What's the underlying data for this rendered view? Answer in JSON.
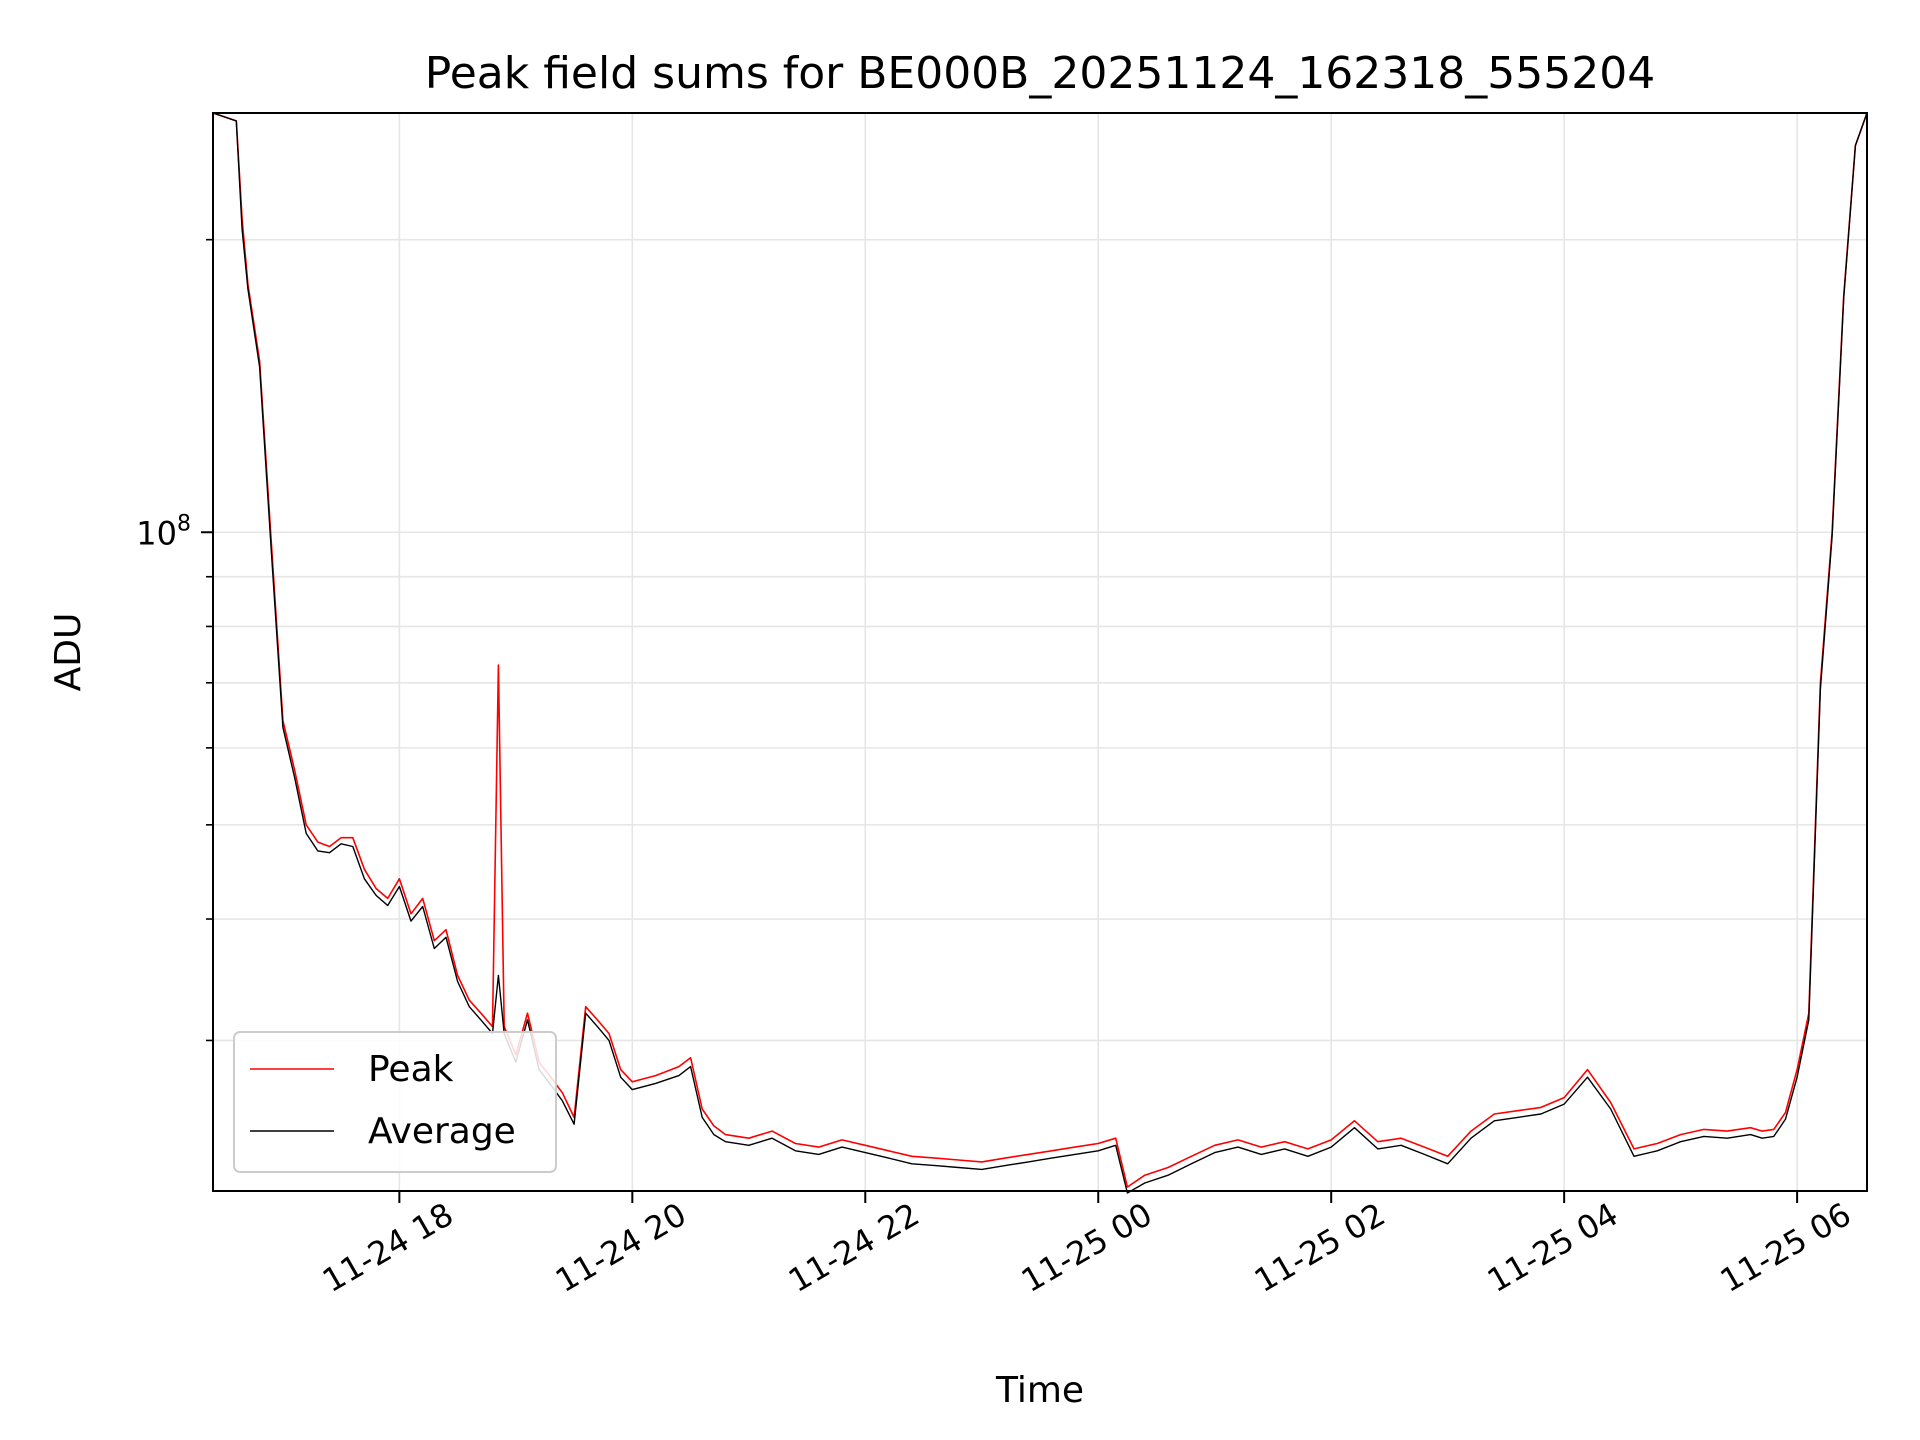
{
  "chart_data": {
    "type": "line",
    "title": "Peak field sums for BE000B_20251124_162318_555204",
    "xlabel": "Time",
    "ylabel": "ADU",
    "yscale": "log",
    "grid": true,
    "legend_location": "lower-left",
    "xlim_hours": [
      16.4,
      30.6
    ],
    "ylim": [
      21000000,
      270000000
    ],
    "x_ticks": [
      {
        "hours": 18,
        "label": "11-24 18"
      },
      {
        "hours": 20,
        "label": "11-24 20"
      },
      {
        "hours": 22,
        "label": "11-24 22"
      },
      {
        "hours": 24,
        "label": "11-25 00"
      },
      {
        "hours": 26,
        "label": "11-25 02"
      },
      {
        "hours": 28,
        "label": "11-25 04"
      },
      {
        "hours": 30,
        "label": "11-25 06"
      }
    ],
    "y_major_ticks": [
      {
        "value": 100000000,
        "base": "10",
        "exp": "8"
      }
    ],
    "y_minor_ticks": [
      30000000,
      40000000,
      50000000,
      60000000,
      70000000,
      80000000,
      90000000,
      200000000
    ],
    "x_hours": [
      16.4,
      16.6,
      16.65,
      16.7,
      16.8,
      16.9,
      17.0,
      17.1,
      17.2,
      17.3,
      17.4,
      17.5,
      17.6,
      17.7,
      17.8,
      17.9,
      18.0,
      18.1,
      18.2,
      18.3,
      18.4,
      18.5,
      18.6,
      18.7,
      18.8,
      18.85,
      18.9,
      19.0,
      19.1,
      19.2,
      19.3,
      19.4,
      19.5,
      19.6,
      19.7,
      19.8,
      19.9,
      20.0,
      20.2,
      20.4,
      20.5,
      20.6,
      20.7,
      20.8,
      21.0,
      21.2,
      21.4,
      21.6,
      21.8,
      22.0,
      22.2,
      22.4,
      22.6,
      22.8,
      23.0,
      23.2,
      23.4,
      23.6,
      23.8,
      24.0,
      24.15,
      24.25,
      24.4,
      24.6,
      24.8,
      25.0,
      25.2,
      25.4,
      25.6,
      25.8,
      26.0,
      26.2,
      26.4,
      26.6,
      26.8,
      27.0,
      27.2,
      27.4,
      27.6,
      27.8,
      28.0,
      28.2,
      28.4,
      28.6,
      28.8,
      29.0,
      29.2,
      29.4,
      29.6,
      29.7,
      29.8,
      29.9,
      30.0,
      30.1,
      30.2,
      30.3,
      30.4,
      30.5,
      30.6
    ],
    "series": [
      {
        "name": "Peak",
        "color": "#ff0000",
        "values": [
          270000000,
          265000000,
          210000000,
          180000000,
          150000000,
          98000000,
          64000000,
          57000000,
          50000000,
          48000000,
          47500000,
          48500000,
          48500000,
          45000000,
          43000000,
          42000000,
          44000000,
          40500000,
          42000000,
          38000000,
          39000000,
          35000000,
          33000000,
          32000000,
          31000000,
          73000000,
          31000000,
          29000000,
          32000000,
          28500000,
          27500000,
          26500000,
          25000000,
          32500000,
          31500000,
          30500000,
          28000000,
          27200000,
          27600000,
          28200000,
          28800000,
          25500000,
          24500000,
          24000000,
          23800000,
          24200000,
          23500000,
          23300000,
          23700000,
          23400000,
          23100000,
          22800000,
          22700000,
          22600000,
          22500000,
          22700000,
          22900000,
          23100000,
          23300000,
          23500000,
          23800000,
          21200000,
          21800000,
          22200000,
          22800000,
          23400000,
          23700000,
          23300000,
          23600000,
          23200000,
          23700000,
          24800000,
          23600000,
          23800000,
          23300000,
          22800000,
          24200000,
          25200000,
          25400000,
          25600000,
          26200000,
          28000000,
          25900000,
          23200000,
          23500000,
          24000000,
          24300000,
          24200000,
          24400000,
          24200000,
          24300000,
          25300000,
          28000000,
          32000000,
          70000000,
          100000000,
          175000000,
          250000000,
          270000000
        ]
      },
      {
        "name": "Average",
        "color": "#000000",
        "values": [
          270000000,
          265000000,
          205000000,
          178000000,
          148000000,
          96000000,
          63000000,
          56000000,
          49000000,
          47000000,
          46800000,
          47800000,
          47500000,
          44000000,
          42300000,
          41300000,
          43200000,
          39800000,
          41200000,
          37300000,
          38300000,
          34500000,
          32500000,
          31500000,
          30500000,
          35000000,
          30500000,
          28500000,
          31500000,
          28000000,
          27000000,
          26000000,
          24600000,
          32000000,
          31000000,
          30000000,
          27500000,
          26700000,
          27100000,
          27600000,
          28200000,
          25000000,
          24000000,
          23600000,
          23400000,
          23800000,
          23100000,
          22900000,
          23300000,
          23000000,
          22700000,
          22400000,
          22300000,
          22200000,
          22100000,
          22300000,
          22500000,
          22700000,
          22900000,
          23100000,
          23400000,
          20900000,
          21400000,
          21800000,
          22400000,
          23000000,
          23300000,
          22900000,
          23200000,
          22800000,
          23300000,
          24400000,
          23200000,
          23400000,
          22900000,
          22400000,
          23800000,
          24800000,
          25000000,
          25200000,
          25800000,
          27500000,
          25500000,
          22800000,
          23100000,
          23600000,
          23900000,
          23800000,
          24000000,
          23800000,
          23900000,
          24900000,
          27500000,
          31500000,
          69000000,
          99000000,
          174000000,
          250000000,
          270000000
        ]
      }
    ]
  }
}
